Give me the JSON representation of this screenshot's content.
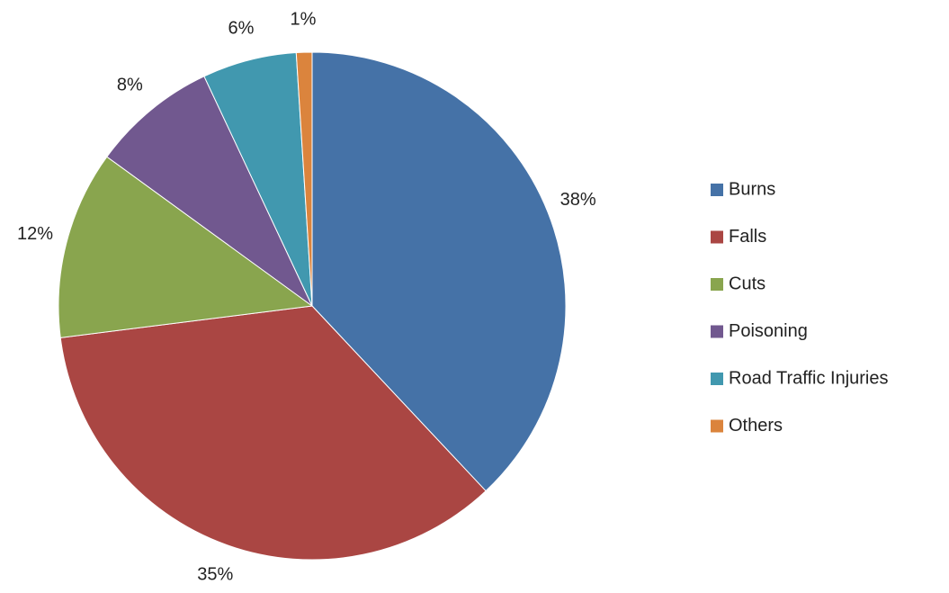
{
  "chart_data": {
    "type": "pie",
    "categories": [
      "Burns",
      "Falls",
      "Cuts",
      "Poisoning",
      "Road Traffic Injuries",
      "Others"
    ],
    "values": [
      38,
      35,
      12,
      8,
      6,
      1
    ],
    "value_labels": [
      "38%",
      "35%",
      "12%",
      "8%",
      "6%",
      "1%"
    ],
    "colors": [
      "#4572a7",
      "#aa4643",
      "#89a54e",
      "#71588f",
      "#4198af",
      "#db843d"
    ],
    "legend": "right"
  }
}
